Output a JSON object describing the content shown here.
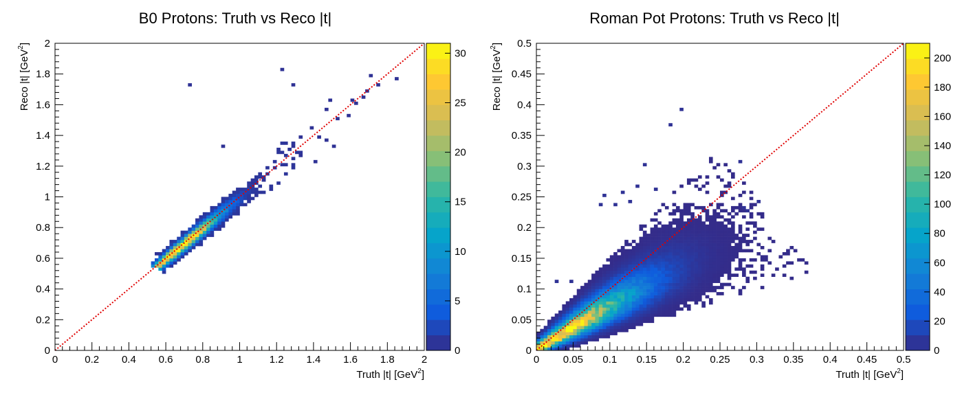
{
  "chart_data": [
    {
      "type": "heatmap",
      "title": "B0 Protons: Truth vs Reco |t|",
      "xlabel": "Truth |t| [GeV",
      "ylabel": "Reco |t| [GeV",
      "unit_superscript": "2",
      "xlabel_close": "]",
      "ylabel_close": "]",
      "xlim": [
        0,
        2
      ],
      "ylim": [
        0,
        2
      ],
      "xticks": [
        "0",
        "0.2",
        "0.4",
        "0.6",
        "0.8",
        "1",
        "1.2",
        "1.4",
        "1.6",
        "1.8",
        "2"
      ],
      "yticks": [
        "0",
        "0.2",
        "0.4",
        "0.6",
        "0.8",
        "1",
        "1.2",
        "1.4",
        "1.6",
        "1.8",
        "2"
      ],
      "bins": [
        100,
        100
      ],
      "reference_line": {
        "from": [
          0,
          0
        ],
        "to": [
          2,
          2
        ],
        "color": "#e00000",
        "style": "dotted"
      },
      "colorbar": {
        "min": 0,
        "max": 31,
        "ticks": [
          "0",
          "5",
          "10",
          "15",
          "20",
          "25",
          "30"
        ]
      },
      "distribution": {
        "band_from": [
          0.56,
          0.55
        ],
        "band_to": [
          1.3,
          1.3
        ],
        "peak": [
          0.7,
          0.72
        ],
        "peak_count": 31
      },
      "outliers": [
        [
          0.73,
          1.73
        ],
        [
          1.22,
          1.83
        ],
        [
          1.29,
          1.73
        ],
        [
          0.91,
          1.33
        ],
        [
          1.48,
          1.63
        ],
        [
          1.58,
          1.53
        ],
        [
          1.71,
          1.79
        ],
        [
          1.74,
          1.73
        ],
        [
          1.85,
          1.77
        ],
        [
          1.61,
          1.63
        ],
        [
          1.68,
          1.69
        ],
        [
          1.52,
          1.51
        ],
        [
          1.46,
          1.57
        ],
        [
          1.39,
          1.45
        ],
        [
          1.43,
          1.39
        ],
        [
          1.47,
          1.37
        ],
        [
          1.5,
          1.33
        ],
        [
          1.4,
          1.23
        ],
        [
          1.33,
          1.27
        ],
        [
          1.28,
          1.33
        ],
        [
          1.32,
          1.39
        ],
        [
          1.66,
          1.65
        ],
        [
          1.62,
          1.6
        ],
        [
          1.12,
          1.1
        ],
        [
          0.55,
          0.63
        ]
      ]
    },
    {
      "type": "heatmap",
      "title": "Roman Pot Protons: Truth vs Reco |t|",
      "xlabel": "Truth |t| [GeV",
      "ylabel": "Reco |t| [GeV",
      "unit_superscript": "2",
      "xlabel_close": "]",
      "ylabel_close": "]",
      "xlim": [
        0,
        0.5
      ],
      "ylim": [
        0,
        0.5
      ],
      "xticks": [
        "0",
        "0.05",
        "0.1",
        "0.15",
        "0.2",
        "0.25",
        "0.3",
        "0.35",
        "0.4",
        "0.45",
        "0.5"
      ],
      "yticks": [
        "0",
        "0.05",
        "0.1",
        "0.15",
        "0.2",
        "0.25",
        "0.3",
        "0.35",
        "0.4",
        "0.45",
        "0.5"
      ],
      "bins": [
        100,
        100
      ],
      "reference_line": {
        "from": [
          0,
          0
        ],
        "to": [
          0.5,
          0.5
        ],
        "color": "#e00000",
        "style": "dotted"
      },
      "colorbar": {
        "min": 0,
        "max": 210,
        "ticks": [
          "0",
          "20",
          "40",
          "60",
          "80",
          "100",
          "120",
          "140",
          "160",
          "180",
          "200"
        ]
      },
      "distribution": {
        "band_from": [
          0.005,
          0.005
        ],
        "band_to": [
          0.3,
          0.22
        ],
        "peak": [
          0.02,
          0.02
        ],
        "peak_count": 210
      },
      "outliers": [
        [
          0.195,
          0.393
        ],
        [
          0.183,
          0.367
        ],
        [
          0.278,
          0.308
        ],
        [
          0.148,
          0.303
        ],
        [
          0.138,
          0.268
        ],
        [
          0.162,
          0.263
        ],
        [
          0.128,
          0.243
        ],
        [
          0.088,
          0.237
        ],
        [
          0.303,
          0.243
        ],
        [
          0.028,
          0.113
        ],
        [
          0.045,
          0.113
        ],
        [
          0.092,
          0.253
        ],
        [
          0.105,
          0.238
        ],
        [
          0.118,
          0.258
        ],
        [
          0.285,
          0.235
        ],
        [
          0.29,
          0.225
        ]
      ]
    }
  ]
}
